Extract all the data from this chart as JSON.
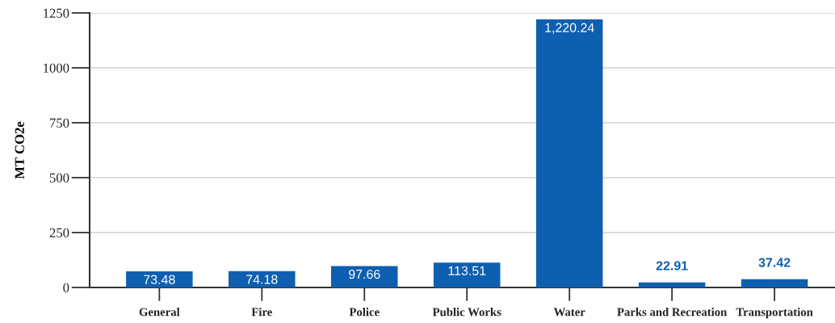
{
  "chart_data": {
    "type": "bar",
    "ylabel": "MT CO2e",
    "categories": [
      "General",
      "Fire",
      "Police",
      "Public Works",
      "Water",
      "Parks and Recreation",
      "Transportation"
    ],
    "values": [
      73.48,
      74.18,
      97.66,
      113.51,
      1220.24,
      22.91,
      37.42
    ],
    "value_labels": [
      "73.48",
      "74.18",
      "97.66",
      "113.51",
      "1,220.24",
      "22.91",
      "37.42"
    ],
    "color": "#0f5fb0",
    "ylim": [
      0,
      1250
    ],
    "yticks": [
      0,
      250,
      500,
      750,
      1000,
      1250
    ],
    "grid": "y",
    "legend": false
  }
}
